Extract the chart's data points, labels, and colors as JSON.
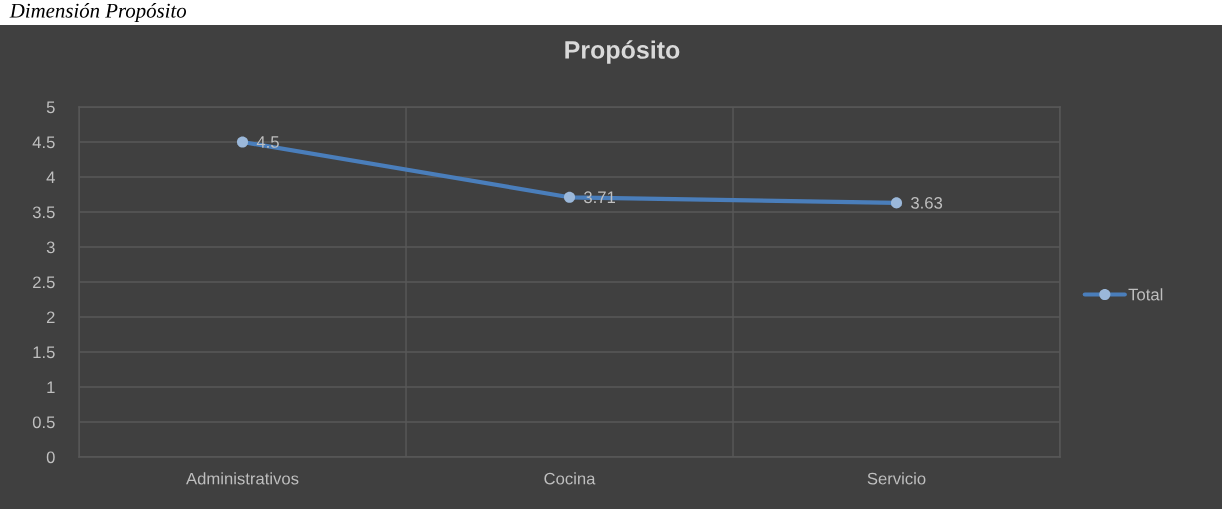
{
  "chart_data": {
    "type": "line",
    "title": "Propósito",
    "annotations": [
      "Dimensión Propósito"
    ],
    "categories": [
      "Administrativos",
      "Cocina",
      "Servicio"
    ],
    "series": [
      {
        "name": "Total",
        "color": "#4a7ebb",
        "values": [
          4.5,
          3.71,
          3.63
        ]
      }
    ],
    "ylim": [
      0,
      5
    ],
    "yticks": [
      0,
      0.5,
      1,
      1.5,
      2,
      2.5,
      3,
      3.5,
      4,
      4.5,
      5
    ],
    "grid": true,
    "legend": "right",
    "marker": "circle",
    "line_style": "solid",
    "data_labels": true
  }
}
